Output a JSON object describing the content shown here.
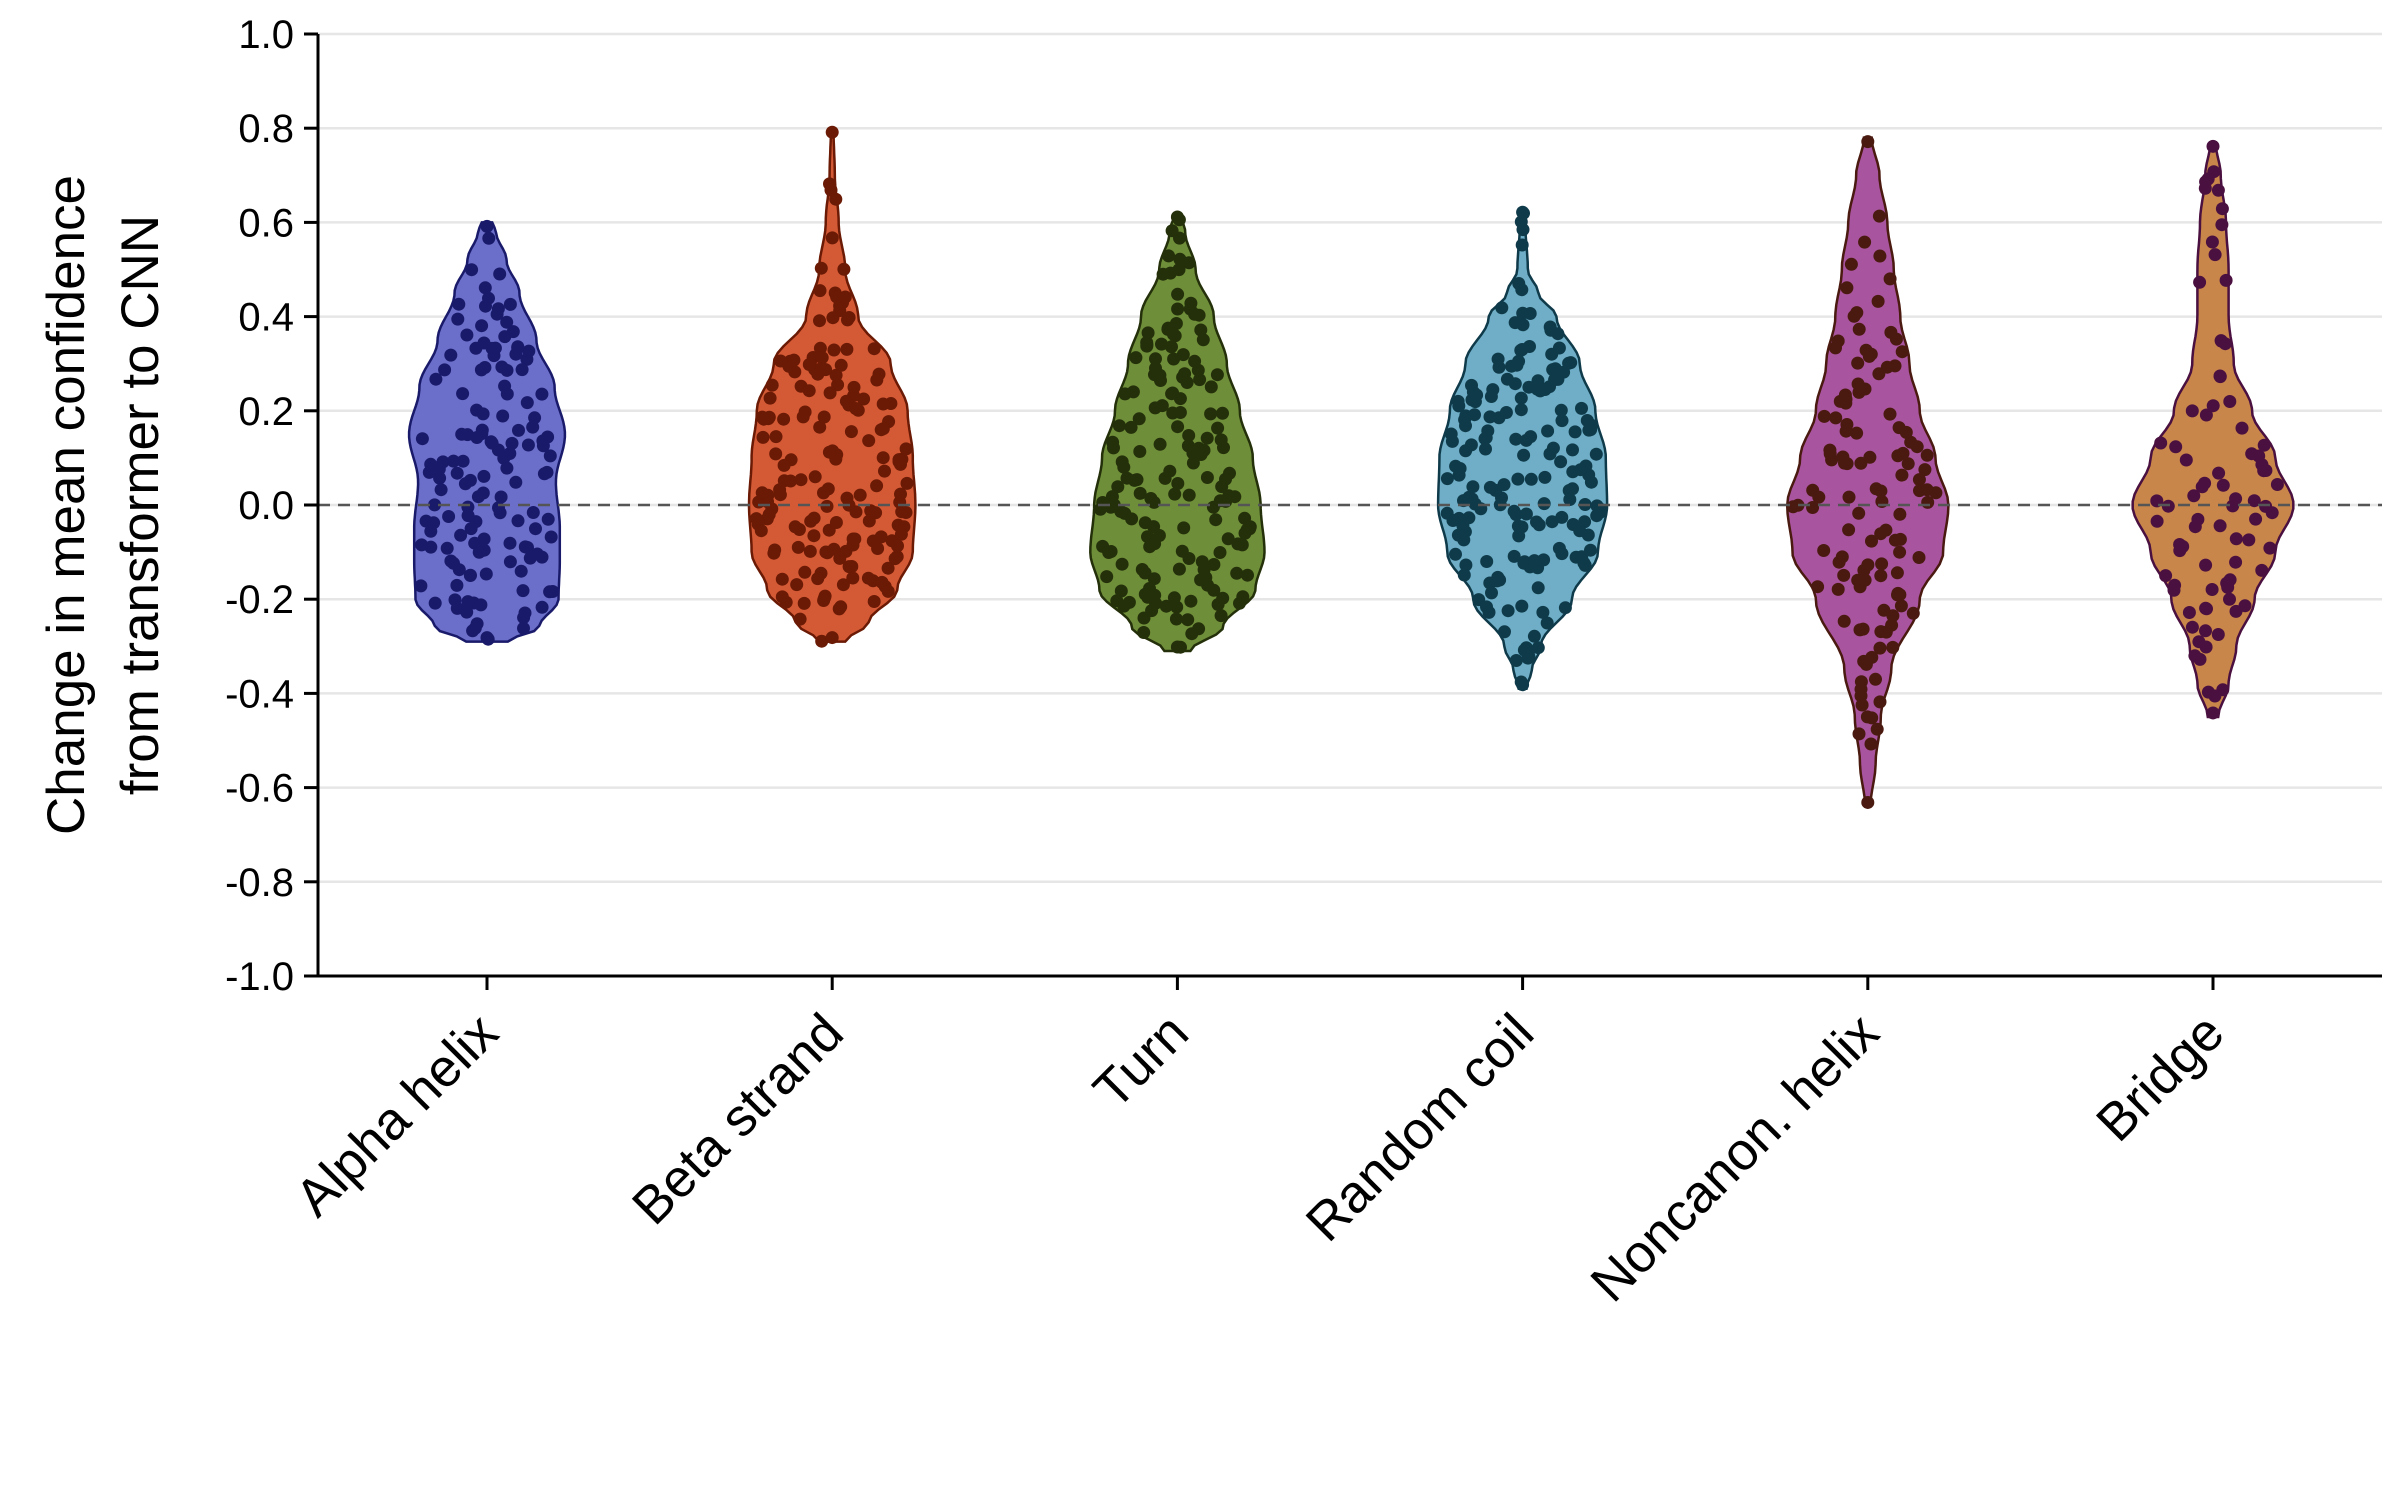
{
  "chart_data": {
    "type": "violin",
    "title": "",
    "xlabel": "",
    "ylabel_lines": [
      "Change in mean confidence",
      "from transformer to CNN"
    ],
    "ylim": [
      -1.0,
      1.0
    ],
    "yticks": [
      "-1.0",
      "-0.8",
      "-0.6",
      "-0.4",
      "-0.2",
      "0.0",
      "0.2",
      "0.4",
      "0.6",
      "0.8",
      "1.0"
    ],
    "grid": "horizontal",
    "reference_line": 0.0,
    "legend": "none",
    "series": [
      {
        "name": "Alpha helix",
        "color": "#6b6fc9",
        "dot_color": "#1a1a6b",
        "min": -0.29,
        "max": 0.6,
        "profile": [
          [
            -0.29,
            0.16
          ],
          [
            -0.26,
            0.4
          ],
          [
            -0.2,
            0.55
          ],
          [
            -0.12,
            0.56
          ],
          [
            -0.05,
            0.56
          ],
          [
            0.05,
            0.53
          ],
          [
            0.15,
            0.6
          ],
          [
            0.25,
            0.52
          ],
          [
            0.35,
            0.38
          ],
          [
            0.45,
            0.25
          ],
          [
            0.52,
            0.15
          ],
          [
            0.58,
            0.07
          ],
          [
            0.6,
            0.04
          ]
        ]
      },
      {
        "name": "Beta strand",
        "color": "#d45a36",
        "dot_color": "#6b1a05",
        "min": -0.29,
        "max": 0.8,
        "profile": [
          [
            -0.29,
            0.1
          ],
          [
            -0.25,
            0.28
          ],
          [
            -0.18,
            0.5
          ],
          [
            -0.1,
            0.62
          ],
          [
            0.0,
            0.64
          ],
          [
            0.1,
            0.62
          ],
          [
            0.2,
            0.58
          ],
          [
            0.3,
            0.45
          ],
          [
            0.4,
            0.2
          ],
          [
            0.5,
            0.1
          ],
          [
            0.6,
            0.05
          ],
          [
            0.7,
            0.02
          ],
          [
            0.8,
            0.01
          ]
        ]
      },
      {
        "name": "Turn",
        "color": "#6f8e3a",
        "dot_color": "#24300a",
        "min": -0.31,
        "max": 0.62,
        "profile": [
          [
            -0.31,
            0.1
          ],
          [
            -0.26,
            0.35
          ],
          [
            -0.18,
            0.6
          ],
          [
            -0.1,
            0.67
          ],
          [
            0.0,
            0.64
          ],
          [
            0.1,
            0.58
          ],
          [
            0.2,
            0.48
          ],
          [
            0.3,
            0.38
          ],
          [
            0.4,
            0.28
          ],
          [
            0.5,
            0.14
          ],
          [
            0.58,
            0.06
          ],
          [
            0.62,
            0.02
          ]
        ]
      },
      {
        "name": "Random coil",
        "color": "#6faec6",
        "dot_color": "#0f3a4a",
        "min": -0.39,
        "max": 0.63,
        "profile": [
          [
            -0.39,
            0.03
          ],
          [
            -0.35,
            0.07
          ],
          [
            -0.3,
            0.14
          ],
          [
            -0.2,
            0.38
          ],
          [
            -0.1,
            0.58
          ],
          [
            0.0,
            0.65
          ],
          [
            0.1,
            0.64
          ],
          [
            0.2,
            0.56
          ],
          [
            0.3,
            0.44
          ],
          [
            0.4,
            0.26
          ],
          [
            0.45,
            0.12
          ],
          [
            0.5,
            0.04
          ],
          [
            0.6,
            0.02
          ],
          [
            0.63,
            0.015
          ]
        ]
      },
      {
        "name": "Noncanon. helix",
        "color": "#a8549e",
        "dot_color": "#4a1a10",
        "min": -0.64,
        "max": 0.78,
        "profile": [
          [
            -0.64,
            0.02
          ],
          [
            -0.55,
            0.06
          ],
          [
            -0.45,
            0.1
          ],
          [
            -0.35,
            0.18
          ],
          [
            -0.2,
            0.4
          ],
          [
            -0.1,
            0.58
          ],
          [
            0.0,
            0.62
          ],
          [
            0.1,
            0.52
          ],
          [
            0.2,
            0.4
          ],
          [
            0.3,
            0.32
          ],
          [
            0.4,
            0.25
          ],
          [
            0.5,
            0.2
          ],
          [
            0.6,
            0.15
          ],
          [
            0.7,
            0.09
          ],
          [
            0.78,
            0.03
          ]
        ]
      },
      {
        "name": "Bridge",
        "color": "#c8864a",
        "dot_color": "#4a1040",
        "min": -0.45,
        "max": 0.77,
        "profile": [
          [
            -0.45,
            0.04
          ],
          [
            -0.38,
            0.12
          ],
          [
            -0.3,
            0.18
          ],
          [
            -0.2,
            0.32
          ],
          [
            -0.1,
            0.48
          ],
          [
            0.0,
            0.62
          ],
          [
            0.1,
            0.48
          ],
          [
            0.2,
            0.3
          ],
          [
            0.3,
            0.16
          ],
          [
            0.4,
            0.12
          ],
          [
            0.5,
            0.12
          ],
          [
            0.6,
            0.1
          ],
          [
            0.7,
            0.06
          ],
          [
            0.77,
            0.02
          ]
        ]
      }
    ],
    "n_points_per_series": [
      140,
      170,
      170,
      180,
      120,
      80
    ]
  }
}
